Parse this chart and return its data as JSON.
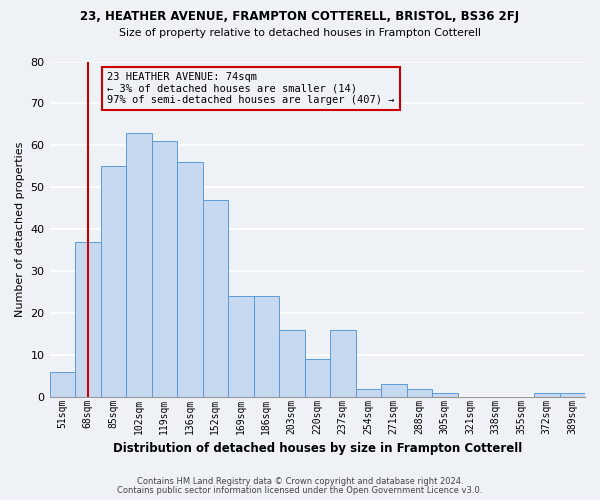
{
  "title1": "23, HEATHER AVENUE, FRAMPTON COTTERELL, BRISTOL, BS36 2FJ",
  "title2": "Size of property relative to detached houses in Frampton Cotterell",
  "xlabel": "Distribution of detached houses by size in Frampton Cotterell",
  "ylabel": "Number of detached properties",
  "categories": [
    "51sqm",
    "68sqm",
    "85sqm",
    "102sqm",
    "119sqm",
    "136sqm",
    "152sqm",
    "169sqm",
    "186sqm",
    "203sqm",
    "220sqm",
    "237sqm",
    "254sqm",
    "271sqm",
    "288sqm",
    "305sqm",
    "321sqm",
    "338sqm",
    "355sqm",
    "372sqm",
    "389sqm"
  ],
  "values": [
    6,
    37,
    55,
    63,
    61,
    56,
    47,
    24,
    24,
    16,
    9,
    16,
    2,
    3,
    2,
    1,
    0,
    0,
    0,
    1,
    1
  ],
  "bar_color": "#c6d9f0",
  "bar_edge_color": "#5b9bd5",
  "vline_x_idx": 1,
  "vline_color": "#cc0000",
  "annotation_line1": "23 HEATHER AVENUE: 74sqm",
  "annotation_line2": "← 3% of detached houses are smaller (14)",
  "annotation_line3": "97% of semi-detached houses are larger (407) →",
  "annotation_box_color": "#cc0000",
  "ylim": [
    0,
    80
  ],
  "yticks": [
    0,
    10,
    20,
    30,
    40,
    50,
    60,
    70,
    80
  ],
  "footnote1": "Contains HM Land Registry data © Crown copyright and database right 2024.",
  "footnote2": "Contains public sector information licensed under the Open Government Licence v3.0.",
  "bg_color": "#eef2f7",
  "grid_color": "#ffffff"
}
